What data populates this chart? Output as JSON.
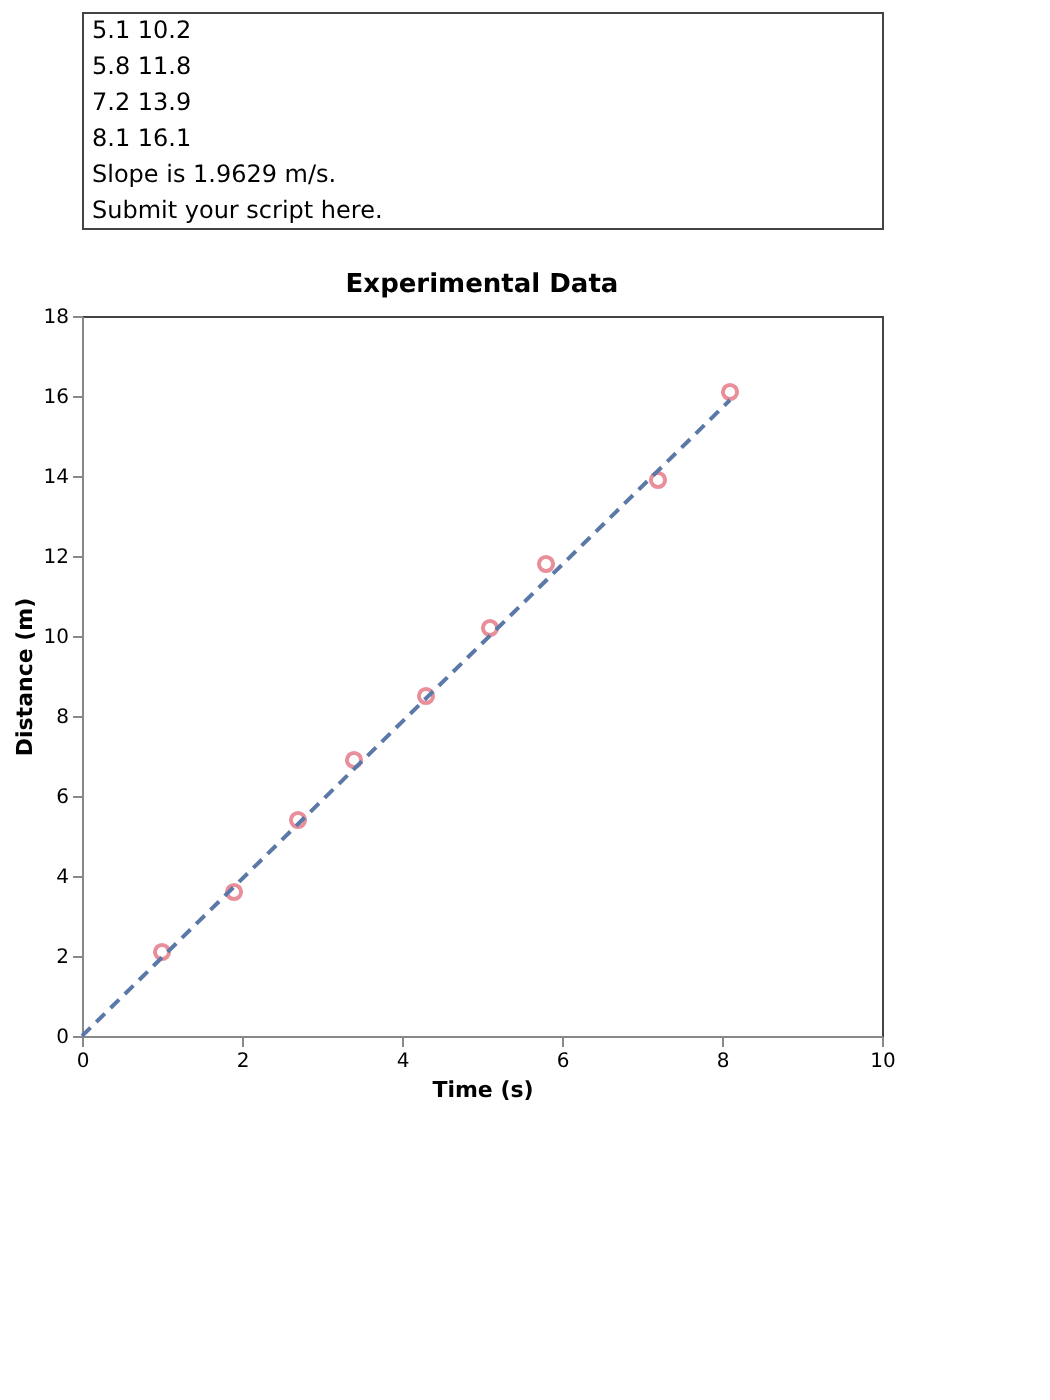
{
  "chart_data": {
    "type": "scatter",
    "title": "Experimental Data",
    "xlabel": "Time (s)",
    "ylabel": "Distance (m)",
    "annotations": [
      "5.1   10.2",
      "5.8   11.8",
      "7.2   13.9",
      "8.1   16.1",
      "Slope is 1.9629 m/s.",
      "Submit your script here."
    ],
    "series": [
      {
        "color": "#e06070",
        "marker": "circle",
        "x": [
          1.0,
          1.9,
          2.7,
          3.4,
          4.3,
          5.1,
          5.8,
          7.2,
          8.1
        ],
        "values": [
          2.1,
          3.6,
          5.4,
          6.9,
          8.5,
          10.2,
          11.8,
          13.9,
          16.1
        ]
      },
      {
        "type": "line",
        "color": "#5a78a8",
        "line_style": "dashed",
        "x": [
          0,
          8.1
        ],
        "values": [
          0,
          15.9
        ]
      }
    ],
    "xlim": [
      0,
      10
    ],
    "xticks": [
      0,
      2,
      4,
      6,
      8,
      10
    ],
    "ylim": [
      0,
      18
    ],
    "yticks": [
      0,
      2,
      4,
      6,
      8,
      10,
      12,
      14,
      16,
      18
    ],
    "grid": false
  }
}
